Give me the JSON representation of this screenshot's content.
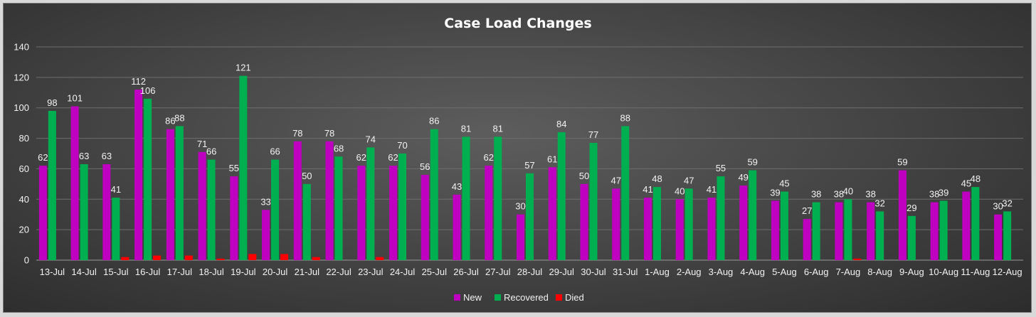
{
  "chart_data": {
    "type": "bar",
    "title": "Case Load Changes",
    "ylim": [
      0,
      140
    ],
    "yticks": [
      0,
      20,
      40,
      60,
      80,
      100,
      120,
      140
    ],
    "grid": true,
    "legend_position": "bottom",
    "categories": [
      "13-Jul",
      "14-Jul",
      "15-Jul",
      "16-Jul",
      "17-Jul",
      "18-Jul",
      "19-Jul",
      "20-Jul",
      "21-Jul",
      "22-Jul",
      "23-Jul",
      "24-Jul",
      "25-Jul",
      "26-Jul",
      "27-Jul",
      "28-Jul",
      "29-Jul",
      "30-Jul",
      "31-Jul",
      "1-Aug",
      "2-Aug",
      "3-Aug",
      "4-Aug",
      "5-Aug",
      "6-Aug",
      "7-Aug",
      "8-Aug",
      "9-Aug",
      "10-Aug",
      "11-Aug",
      "12-Aug"
    ],
    "series": [
      {
        "name": "New",
        "color": "#c000c0",
        "show_labels": true,
        "values": [
          62,
          101,
          63,
          112,
          86,
          71,
          55,
          33,
          78,
          78,
          62,
          62,
          56,
          43,
          62,
          30,
          61,
          50,
          47,
          41,
          40,
          41,
          49,
          39,
          27,
          38,
          38,
          59,
          38,
          45,
          30
        ]
      },
      {
        "name": "Recovered",
        "color": "#00b050",
        "show_labels": true,
        "values": [
          98,
          63,
          41,
          106,
          88,
          66,
          121,
          66,
          50,
          68,
          74,
          70,
          86,
          81,
          81,
          57,
          84,
          77,
          88,
          48,
          47,
          55,
          59,
          45,
          38,
          40,
          32,
          29,
          39,
          48,
          32
        ]
      },
      {
        "name": "Died",
        "color": "#ff0000",
        "show_labels": false,
        "values": [
          0,
          0,
          2,
          3,
          3,
          1,
          4,
          4,
          2,
          0,
          2,
          0,
          0,
          0,
          0,
          0,
          0,
          0,
          0,
          0,
          0,
          0,
          0,
          0,
          0,
          1,
          0,
          0,
          0,
          0,
          0
        ]
      }
    ]
  }
}
